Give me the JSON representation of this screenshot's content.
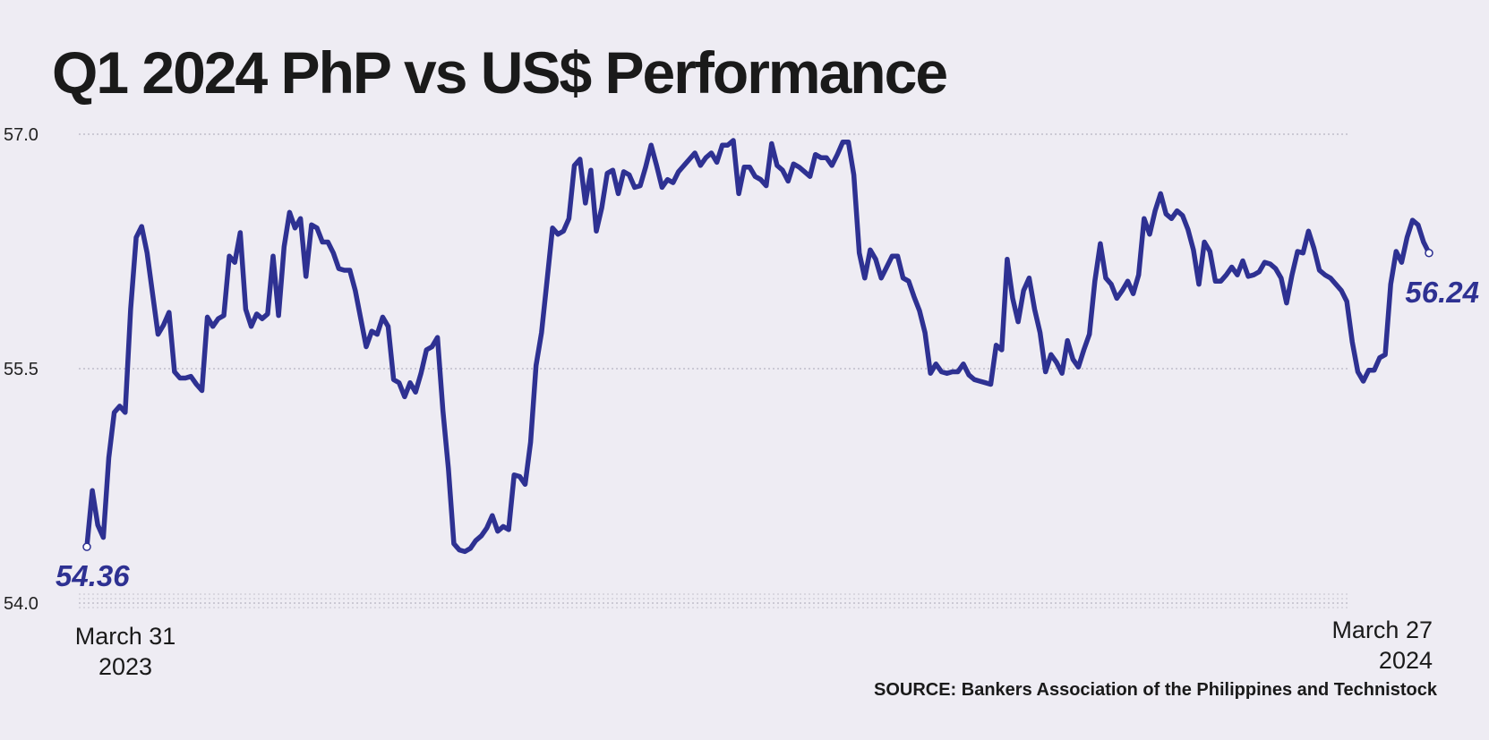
{
  "chart_data": {
    "type": "line",
    "title": "Q1 2024 PhP vs US$ Performance",
    "source": "SOURCE: Bankers Association of the Philippines and Technistock",
    "ylim": [
      54.0,
      57.0
    ],
    "yticks": [
      "57.0",
      "55.5",
      "54.0"
    ],
    "x_start_label": [
      "March 31",
      "2023"
    ],
    "x_end_label": [
      "March 27",
      "2024"
    ],
    "start_value_label": "54.36",
    "end_value_label": "56.24",
    "line_color": "#2e3192",
    "grid": "dotted horizontal",
    "series": [
      {
        "values": [
          54.36,
          54.72,
          54.5,
          54.42,
          54.93,
          55.22,
          55.26,
          55.22,
          55.88,
          56.34,
          56.41,
          56.24,
          55.98,
          55.72,
          55.78,
          55.86,
          55.48,
          55.44,
          55.44,
          55.45,
          55.4,
          55.36,
          55.83,
          55.77,
          55.82,
          55.84,
          56.22,
          56.18,
          56.37,
          55.88,
          55.77,
          55.85,
          55.82,
          55.85,
          56.22,
          55.84,
          56.28,
          56.5,
          56.4,
          56.46,
          56.09,
          56.42,
          56.4,
          56.31,
          56.31,
          56.24,
          56.14,
          56.13,
          56.13,
          56.0,
          55.82,
          55.64,
          55.74,
          55.72,
          55.83,
          55.77,
          55.43,
          55.41,
          55.32,
          55.41,
          55.35,
          55.47,
          55.62,
          55.64,
          55.7,
          55.23,
          54.86,
          54.38,
          54.34,
          54.33,
          54.35,
          54.4,
          54.43,
          54.48,
          54.56,
          54.46,
          54.49,
          54.47,
          54.82,
          54.81,
          54.76,
          55.03,
          55.52,
          55.73,
          56.06,
          56.4,
          56.36,
          56.38,
          56.46,
          56.8,
          56.84,
          56.56,
          56.77,
          56.38,
          56.53,
          56.75,
          56.77,
          56.62,
          56.76,
          56.74,
          56.66,
          56.67,
          56.79,
          56.93,
          56.8,
          56.66,
          56.71,
          56.69,
          56.76,
          56.8,
          56.84,
          56.88,
          56.8,
          56.85,
          56.88,
          56.82,
          56.93,
          56.93,
          56.96,
          56.62,
          56.79,
          56.79,
          56.73,
          56.71,
          56.67,
          56.94,
          56.8,
          56.77,
          56.7,
          56.81,
          56.79,
          56.76,
          56.73,
          56.87,
          56.85,
          56.85,
          56.8,
          56.87,
          56.95,
          56.95,
          56.74,
          56.24,
          56.08,
          56.26,
          56.2,
          56.08,
          56.15,
          56.22,
          56.22,
          56.08,
          56.06,
          55.96,
          55.87,
          55.73,
          55.47,
          55.53,
          55.48,
          55.47,
          55.48,
          55.48,
          55.53,
          55.46,
          55.43,
          55.42,
          55.41,
          55.4,
          55.65,
          55.62,
          56.2,
          55.95,
          55.8,
          56.0,
          56.08,
          55.88,
          55.73,
          55.48,
          55.59,
          55.54,
          55.47,
          55.68,
          55.56,
          55.51,
          55.62,
          55.72,
          56.06,
          56.3,
          56.08,
          56.04,
          55.95,
          56.0,
          56.06,
          55.98,
          56.1,
          56.46,
          56.36,
          56.51,
          56.62,
          56.49,
          56.46,
          56.51,
          56.48,
          56.39,
          56.26,
          56.04,
          56.31,
          56.25,
          56.06,
          56.06,
          56.1,
          56.15,
          56.1,
          56.19,
          56.09,
          56.1,
          56.12,
          56.18,
          56.17,
          56.14,
          56.08,
          55.92,
          56.1,
          56.25,
          56.24,
          56.38,
          56.27,
          56.13,
          56.1,
          56.08,
          56.04,
          56.0,
          55.93,
          55.67,
          55.48,
          55.42,
          55.49,
          55.49,
          55.57,
          55.59,
          56.04,
          56.25,
          56.18,
          56.34,
          56.45,
          56.42,
          56.31,
          56.24
        ]
      }
    ]
  }
}
